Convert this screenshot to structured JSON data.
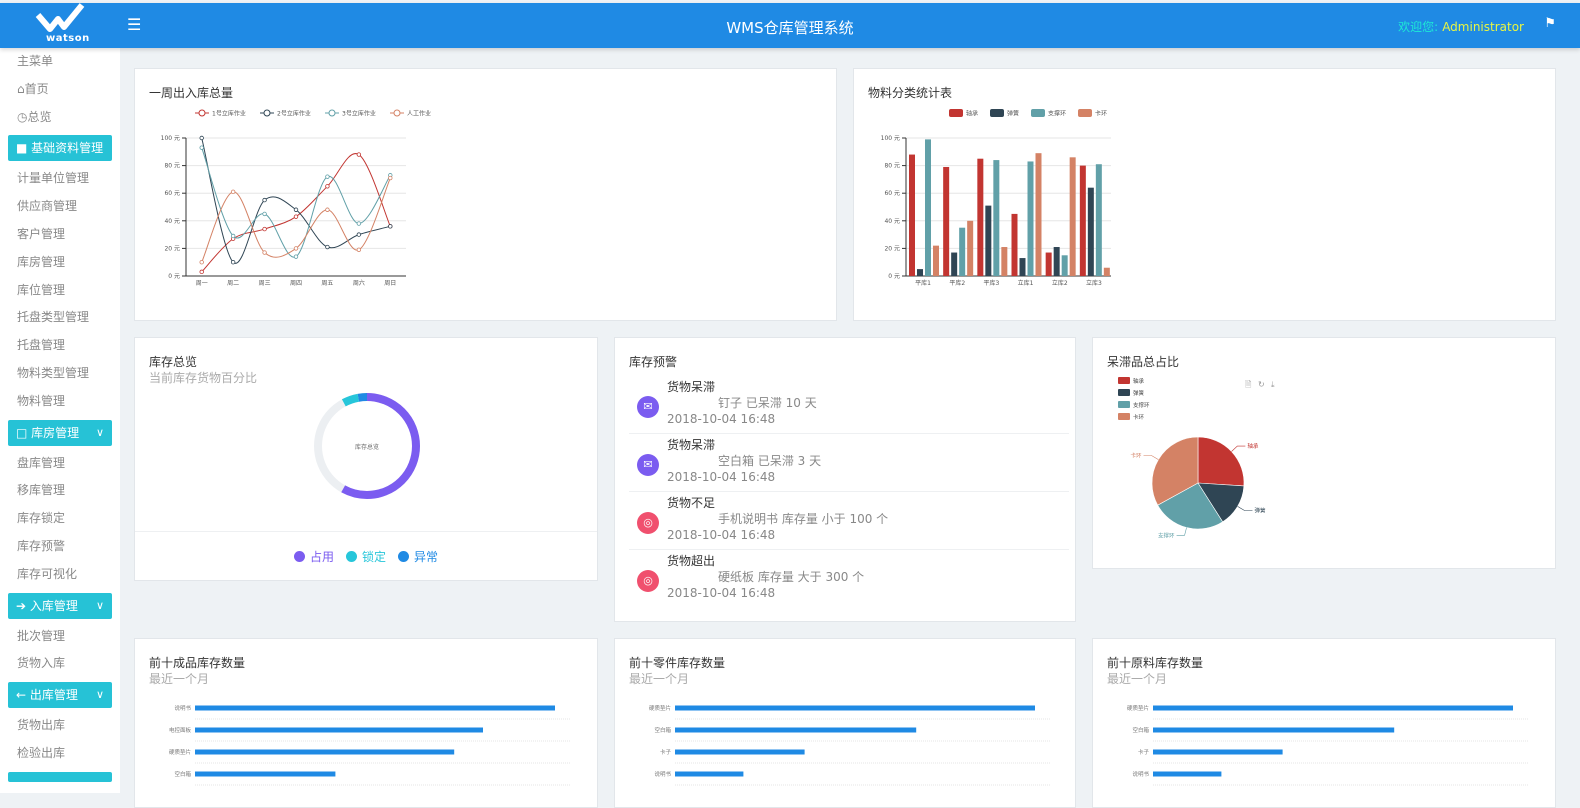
{
  "header": {
    "title": "WMS仓库管理系统",
    "logo_text": "watson",
    "welcome_label": "欢迎您:",
    "username": "Administrator",
    "menu_icon": "hamburger-icon",
    "flag_icon": "flag-icon",
    "color": "#1f8ae4"
  },
  "sidebar": {
    "main_menu": "主菜单",
    "home": "首页",
    "overview": "总览",
    "groups": [
      {
        "label": "基础资料管理",
        "icon": "folder-icon",
        "items": [
          "计量单位管理",
          "供应商管理",
          "客户管理",
          "库房管理",
          "库位管理",
          "托盘类型管理",
          "托盘管理",
          "物料类型管理",
          "物料管理"
        ]
      },
      {
        "label": "库房管理",
        "icon": "square-icon",
        "items": [
          "盘库管理",
          "移库管理",
          "库存锁定",
          "库存预警",
          "库存可视化"
        ]
      },
      {
        "label": "入库管理",
        "icon": "arrow-right-icon",
        "items": [
          "批次管理",
          "货物入库"
        ]
      },
      {
        "label": "出库管理",
        "icon": "arrow-left-icon",
        "items": [
          "货物出库",
          "检验出库"
        ]
      }
    ]
  },
  "cards": {
    "weekly": {
      "title": "一周出入库总量"
    },
    "material": {
      "title": "物料分类统计表"
    },
    "inventory": {
      "title": "库存总览",
      "subtitle": "当前库存货物百分比",
      "center": "库存总览"
    },
    "warning": {
      "title": "库存预警",
      "items": [
        {
          "title": "货物呆滞",
          "desc": "钉子 已呆滞 10 天",
          "time": "2018-10-04 16:48",
          "type": "mail",
          "color": "#7b5cf0"
        },
        {
          "title": "货物呆滞",
          "desc": "空白箱 已呆滞 3 天",
          "time": "2018-10-04 16:48",
          "type": "mail",
          "color": "#7b5cf0"
        },
        {
          "title": "货物不足",
          "desc": "手机说明书 库存量 小于 100 个",
          "time": "2018-10-04 16:48",
          "type": "globe",
          "color": "#f0506e"
        },
        {
          "title": "货物超出",
          "desc": "硬纸板 库存量 大于 300 个",
          "time": "2018-10-04 16:48",
          "type": "globe",
          "color": "#f0506e"
        }
      ]
    },
    "stagnant": {
      "title": "呆滞品总占比"
    },
    "top_finished": {
      "title": "前十成品库存数量",
      "subtitle": "最近一个月"
    },
    "top_parts": {
      "title": "前十零件库存数量",
      "subtitle": "最近一个月"
    },
    "top_raw": {
      "title": "前十原料库存数量",
      "subtitle": "最近一个月"
    }
  },
  "chart_data": [
    {
      "type": "line",
      "smooth": true,
      "categories": [
        "周一",
        "周二",
        "周三",
        "周四",
        "周五",
        "周六",
        "周日"
      ],
      "ylim": [
        0,
        100
      ],
      "yticks": [
        "0 元",
        "20 元",
        "40 元",
        "60 元",
        "80 元",
        "100 元"
      ],
      "legend": "top",
      "grid": true,
      "series": [
        {
          "name": "1号立库作业",
          "color": "#c23531",
          "values": [
            3,
            27,
            34,
            43,
            65,
            88,
            36
          ]
        },
        {
          "name": "2号立库作业",
          "color": "#2f4554",
          "values": [
            100,
            10,
            55,
            48,
            21,
            30,
            36
          ]
        },
        {
          "name": "3号立库作业",
          "color": "#61a0a8",
          "values": [
            93,
            29,
            45,
            14,
            72,
            38,
            73
          ]
        },
        {
          "name": "人工作业",
          "color": "#d48265",
          "values": [
            10,
            61,
            17,
            20,
            48,
            19,
            71
          ]
        }
      ]
    },
    {
      "type": "bar",
      "categories": [
        "平库1",
        "平库2",
        "平库3",
        "立库1",
        "立库2",
        "立库3"
      ],
      "ylim": [
        0,
        100
      ],
      "yticks": [
        "0 元",
        "20 元",
        "40 元",
        "60 元",
        "80 元",
        "100 元"
      ],
      "legend": "top",
      "grid": true,
      "series": [
        {
          "name": "轴承",
          "color": "#c23531",
          "values": [
            88,
            79,
            85,
            45,
            17,
            80
          ]
        },
        {
          "name": "弹簧",
          "color": "#2f4554",
          "values": [
            5,
            17,
            51,
            13,
            21,
            64
          ]
        },
        {
          "name": "支撑环",
          "color": "#61a0a8",
          "values": [
            99,
            35,
            84,
            83,
            15,
            81
          ]
        },
        {
          "name": "卡环",
          "color": "#d48265",
          "values": [
            22,
            40,
            21,
            89,
            86,
            6
          ]
        }
      ]
    },
    {
      "type": "pie",
      "title": "",
      "center_label": "库存总览",
      "donut": true,
      "slices": [
        {
          "name": "占用",
          "value": 58,
          "color": "#7b5cf0"
        },
        {
          "name": "锁定",
          "value": 5,
          "color": "#26c6da"
        },
        {
          "name": "异常",
          "value": 3,
          "color": "#1f8ae4"
        }
      ],
      "remainder_color": "#eceff2",
      "legend": "bottom"
    },
    {
      "type": "pie",
      "legend": "top-left",
      "toolbox": [
        "data-view-icon",
        "refresh-icon",
        "download-icon"
      ],
      "slices": [
        {
          "name": "轴承",
          "value": 26,
          "color": "#c23531"
        },
        {
          "name": "弹簧",
          "value": 15,
          "color": "#2f4554"
        },
        {
          "name": "支撑环",
          "value": 26,
          "color": "#61a0a8"
        },
        {
          "name": "卡环",
          "value": 33,
          "color": "#d48265"
        }
      ]
    },
    {
      "type": "bar",
      "orientation": "horizontal",
      "color": "#1f8ae4",
      "categories": [
        "说明书",
        "电控面板",
        "硬质垫片",
        "空白箱"
      ],
      "values": [
        100,
        80,
        72,
        39
      ]
    },
    {
      "type": "bar",
      "orientation": "horizontal",
      "color": "#1f8ae4",
      "categories": [
        "硬质垫片",
        "空白箱",
        "卡子",
        "说明书"
      ],
      "values": [
        100,
        67,
        36,
        19
      ]
    },
    {
      "type": "bar",
      "orientation": "horizontal",
      "color": "#1f8ae4",
      "categories": [
        "硬质垫片",
        "空白箱",
        "卡子",
        "说明书"
      ],
      "values": [
        100,
        67,
        36,
        19
      ]
    }
  ]
}
